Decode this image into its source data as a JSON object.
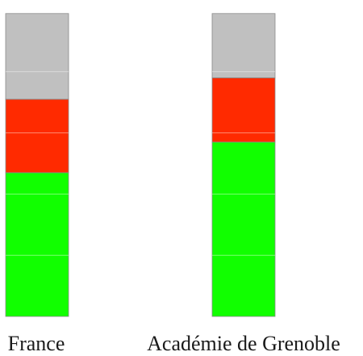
{
  "chart_data": {
    "type": "bar",
    "stacked": true,
    "categories": [
      "France",
      "Académie de Grenoble"
    ],
    "series": [
      {
        "values": [
          47,
          57
        ],
        "color": "#11ff00"
      },
      {
        "values": [
          24,
          21
        ],
        "color": "#ff2a00"
      },
      {
        "values": [
          28,
          21
        ],
        "color": "#c0c0c0"
      }
    ],
    "ylim": [
      0,
      100
    ],
    "grid": true,
    "legend": "none",
    "title": "",
    "xlabel": "",
    "ylabel": ""
  }
}
